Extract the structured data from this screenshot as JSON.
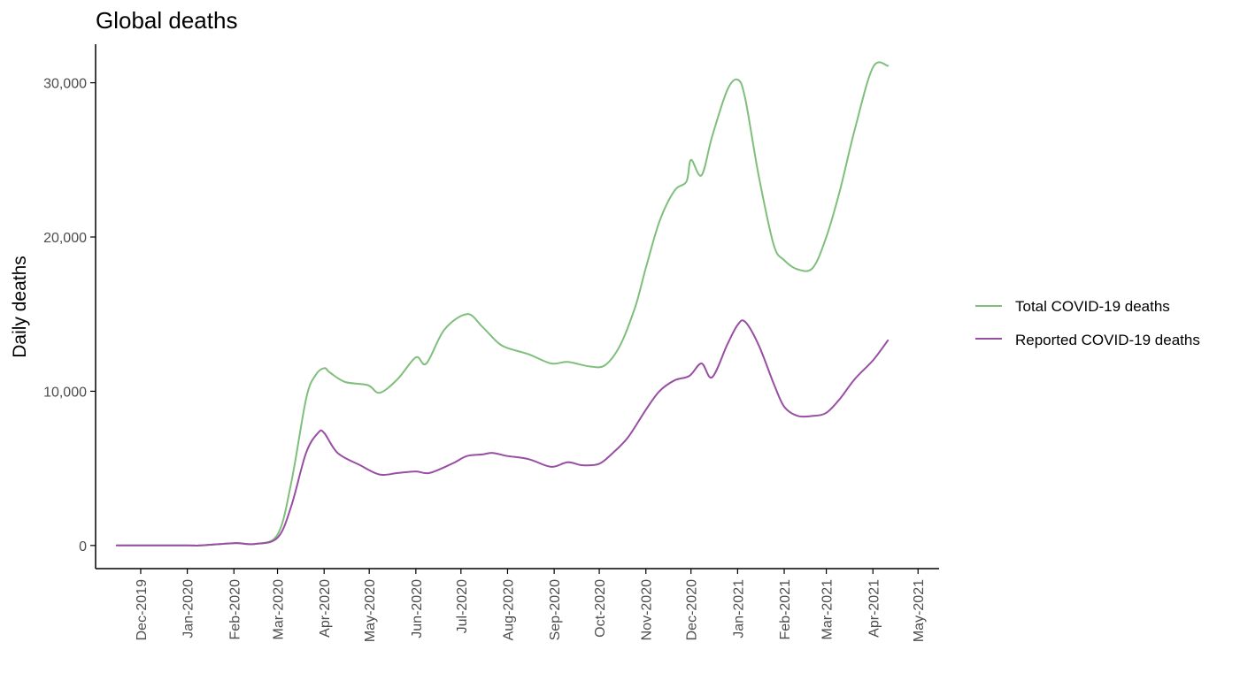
{
  "colors": {
    "total": "#7fbf7b",
    "reported": "#984ea3",
    "axis": "#000000",
    "tick_text": "#4d4d4d"
  },
  "chart_data": {
    "type": "line",
    "title": "Global deaths",
    "xlabel": "",
    "ylabel": "Daily deaths",
    "xlim": [
      "2019-11-01",
      "2021-05-15"
    ],
    "ylim": [
      -1500,
      32500
    ],
    "yticks": [
      0,
      10000,
      20000,
      30000
    ],
    "ytick_labels": [
      "0",
      "10,000",
      "20,000",
      "30,000"
    ],
    "xticks": [
      "2019-12-01",
      "2020-01-01",
      "2020-02-01",
      "2020-03-01",
      "2020-04-01",
      "2020-05-01",
      "2020-06-01",
      "2020-07-01",
      "2020-08-01",
      "2020-09-01",
      "2020-10-01",
      "2020-11-01",
      "2020-12-01",
      "2021-01-01",
      "2021-02-01",
      "2021-03-01",
      "2021-04-01",
      "2021-05-01"
    ],
    "xtick_labels": [
      "Dec-2019",
      "Jan-2020",
      "Feb-2020",
      "Mar-2020",
      "Apr-2020",
      "May-2020",
      "Jun-2020",
      "Jul-2020",
      "Aug-2020",
      "Sep-2020",
      "Oct-2020",
      "Nov-2020",
      "Dec-2020",
      "Jan-2021",
      "Feb-2021",
      "Mar-2021",
      "Apr-2021",
      "May-2021"
    ],
    "grid": false,
    "legend_position": "right",
    "series": [
      {
        "name": "Total COVID-19 deaths",
        "color": "#7fbf7b",
        "x": [
          "2019-11-15",
          "2020-01-01",
          "2020-01-09",
          "2020-02-01",
          "2020-02-15",
          "2020-03-01",
          "2020-03-10",
          "2020-03-20",
          "2020-03-26",
          "2020-04-01",
          "2020-04-05",
          "2020-04-15",
          "2020-04-30",
          "2020-05-08",
          "2020-05-20",
          "2020-06-01",
          "2020-06-08",
          "2020-06-20",
          "2020-07-05",
          "2020-07-15",
          "2020-07-25",
          "2020-08-01",
          "2020-08-15",
          "2020-08-30",
          "2020-09-10",
          "2020-09-25",
          "2020-10-05",
          "2020-10-15",
          "2020-10-25",
          "2020-11-01",
          "2020-11-10",
          "2020-11-20",
          "2020-11-28",
          "2020-12-01",
          "2020-12-08",
          "2020-12-15",
          "2020-12-25",
          "2021-01-01",
          "2021-01-06",
          "2021-01-15",
          "2021-01-25",
          "2021-02-01",
          "2021-02-10",
          "2021-02-20",
          "2021-03-01",
          "2021-03-10",
          "2021-03-20",
          "2021-04-01",
          "2021-04-11"
        ],
        "y": [
          0,
          0,
          0,
          150,
          100,
          700,
          4000,
          9500,
          11000,
          11500,
          11200,
          10600,
          10400,
          9900,
          10800,
          12200,
          11800,
          14000,
          15000,
          14200,
          13200,
          12800,
          12400,
          11800,
          11900,
          11600,
          11700,
          13000,
          15500,
          18000,
          21000,
          23000,
          23600,
          25000,
          24000,
          26500,
          29500,
          30200,
          29000,
          24000,
          19500,
          18500,
          17900,
          18000,
          20000,
          23000,
          27000,
          31000,
          31100
        ]
      },
      {
        "name": "Reported COVID-19 deaths",
        "color": "#984ea3",
        "x": [
          "2019-11-15",
          "2020-01-01",
          "2020-01-09",
          "2020-02-01",
          "2020-02-15",
          "2020-03-01",
          "2020-03-10",
          "2020-03-20",
          "2020-03-28",
          "2020-04-01",
          "2020-04-10",
          "2020-04-25",
          "2020-05-08",
          "2020-05-20",
          "2020-06-01",
          "2020-06-10",
          "2020-06-25",
          "2020-07-05",
          "2020-07-15",
          "2020-07-22",
          "2020-08-01",
          "2020-08-15",
          "2020-08-30",
          "2020-09-10",
          "2020-09-20",
          "2020-10-01",
          "2020-10-10",
          "2020-10-20",
          "2020-11-01",
          "2020-11-10",
          "2020-11-20",
          "2020-11-30",
          "2020-12-08",
          "2020-12-15",
          "2020-12-25",
          "2021-01-01",
          "2021-01-06",
          "2021-01-15",
          "2021-01-25",
          "2021-02-01",
          "2021-02-10",
          "2021-02-20",
          "2021-03-01",
          "2021-03-10",
          "2021-03-20",
          "2021-04-01",
          "2021-04-11"
        ],
        "y": [
          0,
          0,
          0,
          150,
          100,
          500,
          2500,
          6000,
          7300,
          7300,
          6000,
          5200,
          4600,
          4700,
          4800,
          4700,
          5300,
          5800,
          5900,
          6000,
          5800,
          5600,
          5100,
          5400,
          5200,
          5300,
          6000,
          7000,
          8800,
          10000,
          10700,
          11000,
          11800,
          10900,
          13000,
          14300,
          14500,
          13000,
          10500,
          9000,
          8400,
          8400,
          8600,
          9500,
          10800,
          12000,
          13300
        ]
      }
    ]
  }
}
